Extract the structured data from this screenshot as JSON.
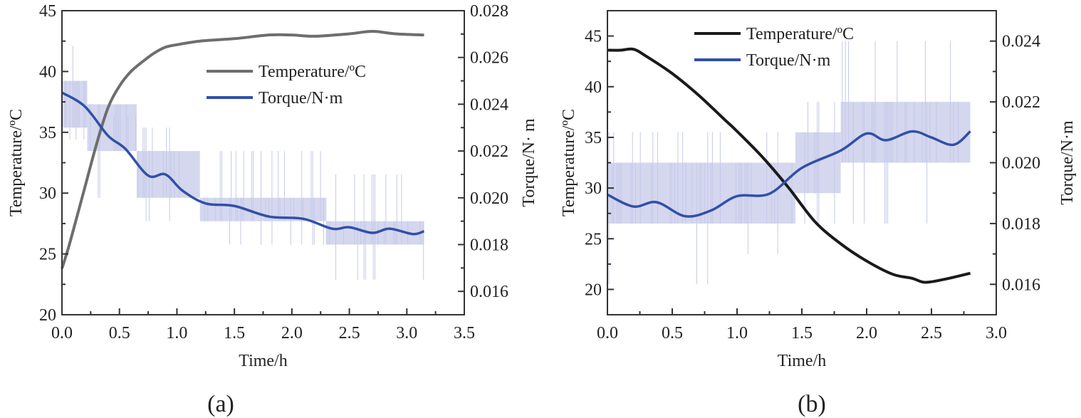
{
  "chart_data": [
    {
      "id": "a",
      "type": "line",
      "caption": "(a)",
      "xlabel": "Time/h",
      "ylabel": "Temperature/ºC",
      "y2label": "Torque/N· m",
      "xlim": [
        0,
        3.5
      ],
      "ylim": [
        20,
        45
      ],
      "y2lim": [
        0.015,
        0.028
      ],
      "xticks": [
        "0.0",
        "0.5",
        "1.0",
        "1.5",
        "2.0",
        "2.5",
        "3.0",
        "3.5"
      ],
      "yticks": [
        "20",
        "25",
        "30",
        "35",
        "40",
        "45"
      ],
      "y2ticks": [
        "0.016",
        "0.018",
        "0.020",
        "0.022",
        "0.024",
        "0.026",
        "0.028"
      ],
      "legend": {
        "position": "upper-center",
        "entries": [
          "Temperature/ºC",
          "Torque/N·m"
        ]
      },
      "colors": {
        "temperature": "#6e6e6e",
        "torque": "#3050a8",
        "torque_raw": "#c5c9e8"
      },
      "series": [
        {
          "name": "Temperature/ºC",
          "axis": "left",
          "x": [
            0,
            0.05,
            0.1,
            0.2,
            0.3,
            0.4,
            0.5,
            0.6,
            0.7,
            0.8,
            0.9,
            1.0,
            1.2,
            1.5,
            1.8,
            2.0,
            2.2,
            2.5,
            2.7,
            2.9,
            3.15
          ],
          "y": [
            23.8,
            25.3,
            27,
            30.5,
            34,
            37,
            38.8,
            40,
            40.8,
            41.5,
            42,
            42.2,
            42.5,
            42.7,
            43,
            43,
            42.9,
            43.1,
            43.3,
            43.1,
            43
          ]
        },
        {
          "name": "Torque/N·m",
          "axis": "right",
          "x": [
            0,
            0.2,
            0.4,
            0.55,
            0.75,
            0.9,
            1.05,
            1.25,
            1.5,
            1.8,
            2.1,
            2.35,
            2.5,
            2.7,
            2.85,
            3.05,
            3.15
          ],
          "y": [
            0.0245,
            0.0239,
            0.02266,
            0.0221,
            0.02095,
            0.021,
            0.0203,
            0.01976,
            0.01965,
            0.0192,
            0.0191,
            0.01868,
            0.01874,
            0.0185,
            0.01868,
            0.01845,
            0.01857
          ]
        }
      ],
      "raw_torque_bands": [
        {
          "t": [
            0,
            0.22
          ],
          "range": [
            0.023,
            0.025
          ],
          "spike": [
            0.0225,
            0.0265
          ]
        },
        {
          "t": [
            0.22,
            0.65
          ],
          "range": [
            0.022,
            0.024
          ],
          "spike": [
            0.02,
            0.0235
          ]
        },
        {
          "t": [
            0.65,
            1.2
          ],
          "range": [
            0.02,
            0.022
          ],
          "spike": [
            0.019,
            0.023
          ]
        },
        {
          "t": [
            1.2,
            2.3
          ],
          "range": [
            0.019,
            0.02
          ],
          "spike": [
            0.018,
            0.022
          ]
        },
        {
          "t": [
            2.3,
            3.15
          ],
          "range": [
            0.018,
            0.019
          ],
          "spike": [
            0.0165,
            0.021
          ]
        }
      ]
    },
    {
      "id": "b",
      "type": "line",
      "caption": "(b)",
      "xlabel": "Time/h",
      "ylabel": "Temperature/ºC",
      "y2label": "Torque/N·m",
      "xlim": [
        0,
        3.0
      ],
      "ylim": [
        17.5,
        47.5
      ],
      "y2lim": [
        0.015,
        0.025
      ],
      "xticks": [
        "0.0",
        "0.5",
        "1.0",
        "1.5",
        "2.0",
        "2.5",
        "3.0"
      ],
      "yticks": [
        "20",
        "25",
        "30",
        "35",
        "40",
        "45"
      ],
      "y2ticks": [
        "0.016",
        "0.018",
        "0.020",
        "0.022",
        "0.024"
      ],
      "legend": {
        "position": "top-center",
        "entries": [
          "Temperature/ºC",
          "Torque/N·m"
        ]
      },
      "colors": {
        "temperature": "#1a1a1a",
        "torque": "#3050a8",
        "torque_raw": "#c5c9e8"
      },
      "series": [
        {
          "name": "Temperature/ºC",
          "axis": "left",
          "x": [
            0,
            0.1,
            0.2,
            0.3,
            0.5,
            0.7,
            0.9,
            1.0,
            1.2,
            1.4,
            1.6,
            1.8,
            2.0,
            2.2,
            2.35,
            2.45,
            2.6,
            2.8
          ],
          "y": [
            43.6,
            43.6,
            43.7,
            43,
            41.3,
            39.2,
            36.8,
            35.6,
            33,
            30,
            26.7,
            24.5,
            22.8,
            21.5,
            21.1,
            20.7,
            21,
            21.6
          ]
        },
        {
          "name": "Torque/N·m",
          "axis": "right",
          "x": [
            0,
            0.2,
            0.38,
            0.6,
            0.8,
            1.0,
            1.25,
            1.5,
            1.8,
            2.0,
            2.15,
            2.35,
            2.5,
            2.67,
            2.8
          ],
          "y": [
            0.01895,
            0.01856,
            0.0187,
            0.01824,
            0.01843,
            0.0189,
            0.01898,
            0.01983,
            0.0204,
            0.02096,
            0.02074,
            0.02103,
            0.02083,
            0.02059,
            0.02103
          ]
        }
      ],
      "raw_torque_bands": [
        {
          "t": [
            0,
            1.0
          ],
          "range": [
            0.018,
            0.02
          ],
          "spike": [
            0.016,
            0.021
          ]
        },
        {
          "t": [
            1.0,
            1.45
          ],
          "range": [
            0.018,
            0.02
          ],
          "spike": [
            0.017,
            0.021
          ]
        },
        {
          "t": [
            1.45,
            1.8
          ],
          "range": [
            0.019,
            0.021
          ],
          "spike": [
            0.018,
            0.022
          ]
        },
        {
          "t": [
            1.8,
            2.8
          ],
          "range": [
            0.02,
            0.022
          ],
          "spike": [
            0.018,
            0.024
          ]
        }
      ]
    }
  ]
}
